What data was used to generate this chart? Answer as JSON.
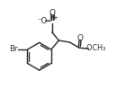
{
  "bg": "white",
  "lc": "#303030",
  "figsize": [
    1.4,
    0.99
  ],
  "dpi": 100,
  "xlim": [
    0,
    10
  ],
  "ylim": [
    0,
    7
  ]
}
